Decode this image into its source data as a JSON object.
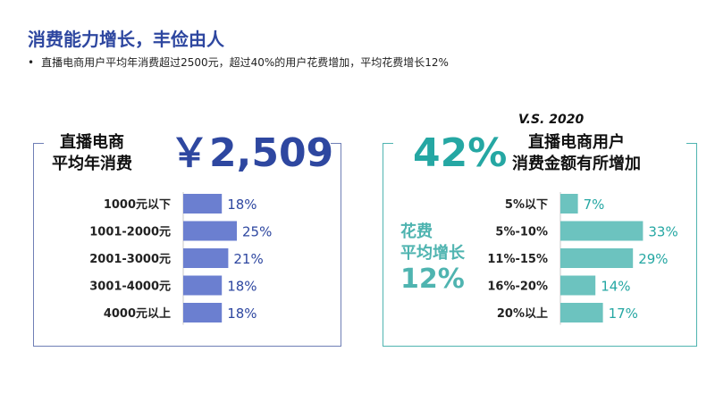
{
  "header": {
    "title": "消费能力增长，丰俭由人",
    "bullet": "•",
    "subtitle": "直播电商用户平均年消费超过2500元，超过40%的用户花费增加，平均花费增长12%"
  },
  "left": {
    "label_line1": "直播电商",
    "label_line2": "平均年消费",
    "big_value": "￥2,509",
    "accent": "#2e47a0",
    "bar_color": "#6b7fd0"
  },
  "right": {
    "vs_label": "V.S. 2020",
    "big_value": "42%",
    "label_line1": "直播电商用户",
    "label_line2": "消费金额有所增加",
    "side_line1": "花费",
    "side_line2": "平均增长",
    "side_value": "12%",
    "accent": "#4fb4b0",
    "bar_color": "#6cc3bf"
  },
  "chart_data": [
    {
      "type": "bar",
      "orientation": "horizontal",
      "categories": [
        "1000元以下",
        "1001-2000元",
        "2001-3000元",
        "3001-4000元",
        "4000元以上"
      ],
      "values": [
        18,
        25,
        21,
        18,
        18
      ],
      "value_labels": [
        "18%",
        "25%",
        "21%",
        "18%",
        "18%"
      ],
      "unit": "%"
    },
    {
      "type": "bar",
      "orientation": "horizontal",
      "categories": [
        "5%以下",
        "5%-10%",
        "11%-15%",
        "16%-20%",
        "20%以上"
      ],
      "values": [
        7,
        33,
        29,
        14,
        17
      ],
      "value_labels": [
        "7%",
        "33%",
        "29%",
        "14%",
        "17%"
      ],
      "unit": "%"
    }
  ]
}
